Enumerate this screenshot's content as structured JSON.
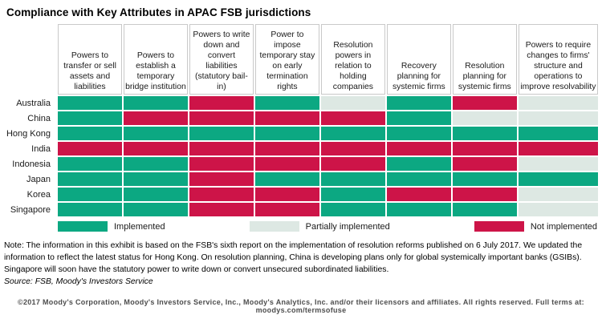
{
  "title": "Compliance with Key Attributes in APAC FSB jurisdictions",
  "chart_data": {
    "type": "heatmap",
    "title": "Compliance with Key Attributes in APAC FSB jurisdictions",
    "columns": [
      "Powers to transfer or sell assets and liabilities",
      "Powers to establish a temporary bridge institution",
      "Powers to write down and convert liabilities (statutory bail-in)",
      "Power to impose temporary stay on early termination rights",
      "Resolution powers in relation to holding companies",
      "Recovery planning for systemic firms",
      "Resolution planning for systemic firms",
      "Powers to require changes to firms' structure and operations to improve resolvability"
    ],
    "rows": [
      "Australia",
      "China",
      "Hong Kong",
      "India",
      "Indonesia",
      "Japan",
      "Korea",
      "Singapore"
    ],
    "values": [
      [
        "implemented",
        "implemented",
        "not",
        "implemented",
        "partial",
        "implemented",
        "not",
        "partial"
      ],
      [
        "implemented",
        "not",
        "not",
        "not",
        "not",
        "implemented",
        "partial",
        "partial"
      ],
      [
        "implemented",
        "implemented",
        "implemented",
        "implemented",
        "implemented",
        "implemented",
        "implemented",
        "implemented"
      ],
      [
        "not",
        "not",
        "not",
        "not",
        "not",
        "not",
        "not",
        "not"
      ],
      [
        "implemented",
        "implemented",
        "not",
        "not",
        "not",
        "implemented",
        "not",
        "partial"
      ],
      [
        "implemented",
        "implemented",
        "not",
        "implemented",
        "implemented",
        "implemented",
        "implemented",
        "implemented"
      ],
      [
        "implemented",
        "implemented",
        "not",
        "not",
        "implemented",
        "not",
        "not",
        "partial"
      ],
      [
        "implemented",
        "implemented",
        "not",
        "not",
        "implemented",
        "implemented",
        "implemented",
        "partial"
      ]
    ],
    "legend": [
      {
        "key": "implemented",
        "label": "Implemented"
      },
      {
        "key": "partial",
        "label": "Partially implemented"
      },
      {
        "key": "not",
        "label": "Not implemented"
      }
    ],
    "cell_colors": {
      "implemented": "#0ca882",
      "partial": "#dde8e3",
      "not": "#cd1448"
    },
    "header_border_color": "#c9c9c9"
  },
  "note": "Note: The information in this exhibit is based on the FSB's sixth report on the implementation of resolution reforms published on 6 July 2017. We updated the information to reflect the latest status for Hong Kong. On resolution planning, China is developing plans only for global systemically important banks (GSIBs). Singapore will soon have the statutory power to write down or convert unsecured subordinated liabilities.",
  "source": "Source: FSB, Moody's Investors Service",
  "footer": "©2017 Moody's Corporation, Moody's Investors Service, Inc., Moody's Analytics, Inc. and/or their licensors and affiliates.  All rights reserved.  Full terms at: moodys.com/termsofuse"
}
